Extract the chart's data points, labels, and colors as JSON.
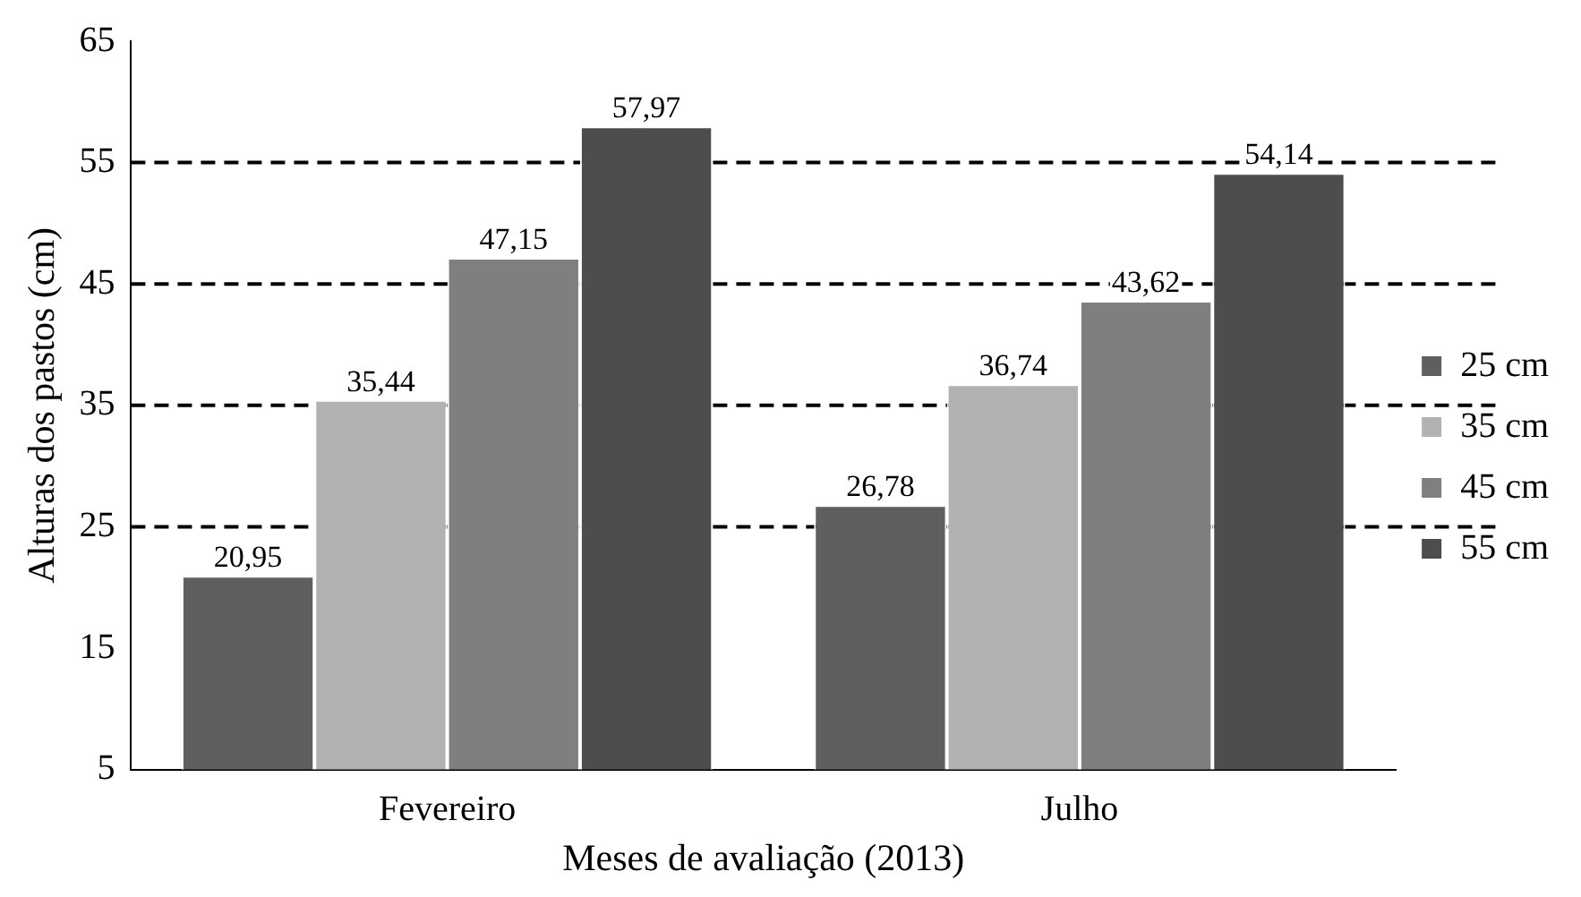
{
  "chart_data": {
    "type": "bar",
    "xlabel": "Meses de avaliação (2013)",
    "ylabel": "Alturas dos pastos (cm)",
    "categories": [
      "Fevereiro",
      "Julho"
    ],
    "series": [
      {
        "name": "25 cm",
        "color": "#5f5f5f",
        "values": [
          20.95,
          26.78
        ],
        "value_labels": [
          "20,95",
          "26,78"
        ]
      },
      {
        "name": "35 cm",
        "color": "#b2b2b2",
        "values": [
          35.44,
          36.74
        ],
        "value_labels": [
          "35,44",
          "36,74"
        ]
      },
      {
        "name": "45 cm",
        "color": "#7f7f7f",
        "values": [
          47.15,
          43.62
        ],
        "value_labels": [
          "47,15",
          "43,62"
        ]
      },
      {
        "name": "55 cm",
        "color": "#4d4d4d",
        "values": [
          57.97,
          54.14
        ],
        "value_labels": [
          "57,97",
          "54,14"
        ]
      }
    ],
    "ylim": [
      5,
      65
    ],
    "yticks": [
      5,
      15,
      25,
      35,
      45,
      55,
      65
    ],
    "grid": false,
    "legend": "right",
    "ref_lines": [
      {
        "axis": "y",
        "value": 25,
        "line_style": "dashed",
        "color": "#000000"
      },
      {
        "axis": "y",
        "value": 35,
        "line_style": "dashed",
        "color": "#000000"
      },
      {
        "axis": "y",
        "value": 45,
        "line_style": "dashed",
        "color": "#000000"
      },
      {
        "axis": "y",
        "value": 55,
        "line_style": "dashed",
        "color": "#000000"
      }
    ]
  }
}
